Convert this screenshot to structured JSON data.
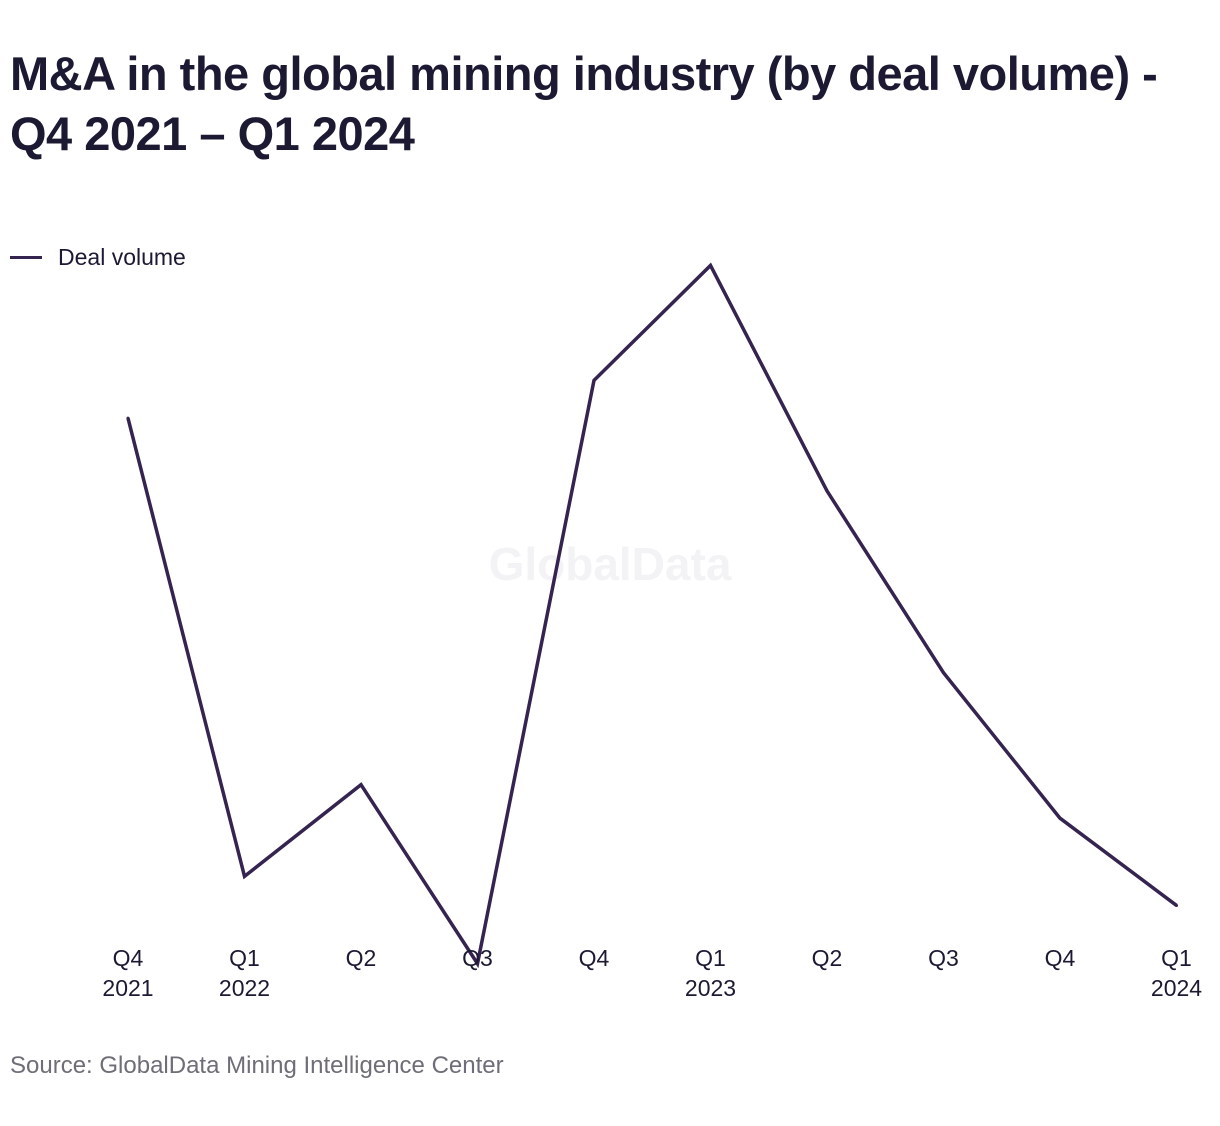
{
  "chart_data": {
    "type": "line",
    "title": "M&A in the global mining industry (by deal volume) - Q4 2021 – Q1 2024",
    "categories": [
      "Q4 2021",
      "Q1 2022",
      "Q2 2022",
      "Q3 2022",
      "Q4 2022",
      "Q1 2023",
      "Q2 2023",
      "Q3 2023",
      "Q4 2023",
      "Q1 2024"
    ],
    "x_tick_labels": [
      [
        "Q4",
        "2021"
      ],
      [
        "Q1",
        "2022"
      ],
      [
        "Q2",
        ""
      ],
      [
        "Q3",
        ""
      ],
      [
        "Q4",
        ""
      ],
      [
        "Q1",
        "2023"
      ],
      [
        "Q2",
        ""
      ],
      [
        "Q3",
        ""
      ],
      [
        "Q4",
        ""
      ],
      [
        "Q1",
        "2024"
      ]
    ],
    "series": [
      {
        "name": "Deal volume",
        "color": "#35244f",
        "values": [
          60,
          28.5,
          34.8,
          22.5,
          62.6,
          70.5,
          55,
          42.5,
          32.5,
          26.5
        ]
      }
    ],
    "ylim": [
      20,
      75
    ],
    "y_axis_shown": false,
    "grid": false,
    "legend": "top-left",
    "watermark": "GlobalData",
    "source": "Source: GlobalData Mining Intelligence Center"
  }
}
